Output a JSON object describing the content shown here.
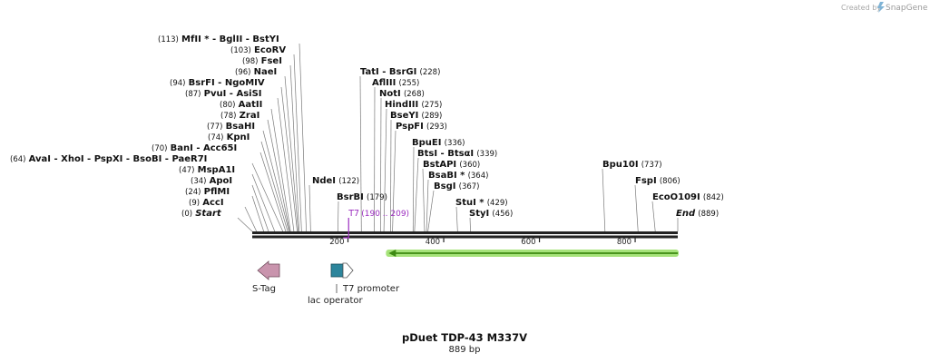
{
  "branding": {
    "created_by": "Created by",
    "app": "SnapGene",
    "logo_icon": "snapgene-logo-icon"
  },
  "plasmid": {
    "name": "pDuet TDP-43 M337V",
    "length_label": "889 bp",
    "length": 889
  },
  "scale": {
    "ticks": [
      200,
      400,
      600,
      800
    ],
    "tick_labels": [
      "200",
      "400",
      "600",
      "800"
    ]
  },
  "sites": [
    {
      "name": "Start",
      "italic": true,
      "pos_label": "(0)",
      "pos": 0
    },
    {
      "name": "AccI",
      "pos_label": "(9)",
      "pos": 9
    },
    {
      "name": "PflMI",
      "pos_label": "(24)",
      "pos": 24
    },
    {
      "name": "ApoI",
      "pos_label": "(34)",
      "pos": 34
    },
    {
      "name": "MspA1I",
      "pos_label": "(47)",
      "pos": 47
    },
    {
      "pos_label": "(64)",
      "pos": 64,
      "names": [
        "AvaI",
        "XhoI",
        "PspXI",
        "BsoBI",
        "PaeR7I"
      ]
    },
    {
      "name": "KpnI",
      "pos_label": "(74)",
      "pos": 74
    },
    {
      "pos_label": "(70)",
      "pos": 70,
      "names": [
        "BanI",
        "Acc65I"
      ]
    },
    {
      "name": "BsaHI",
      "pos_label": "(77)",
      "pos": 77
    },
    {
      "name": "ZraI",
      "pos_label": "(78)",
      "pos": 78
    },
    {
      "name": "AatII",
      "pos_label": "(80)",
      "pos": 80
    },
    {
      "pos_label": "(87)",
      "pos": 87,
      "names": [
        "PvuI",
        "AsiSI"
      ]
    },
    {
      "pos_label": "(94)",
      "pos": 94,
      "names": [
        "BsrFI",
        "NgoMIV"
      ]
    },
    {
      "name": "NaeI",
      "pos_label": "(96)",
      "pos": 96
    },
    {
      "name": "FseI",
      "pos_label": "(98)",
      "pos": 98
    },
    {
      "name": "EcoRV",
      "pos_label": "(103)",
      "pos": 103
    },
    {
      "pos_label": "(113)",
      "pos": 113,
      "names": [
        "MfII *",
        "BglII",
        "BstYI"
      ]
    },
    {
      "name": "NdeI",
      "pos_label": "(122)",
      "pos": 122
    },
    {
      "name": "BsrBI",
      "pos_label": "(179)",
      "pos": 179
    },
    {
      "pos_label": "(228)",
      "pos": 228,
      "names": [
        "TatI",
        "BsrGI"
      ]
    },
    {
      "name": "AflIII",
      "pos_label": "(255)",
      "pos": 255
    },
    {
      "name": "NotI",
      "pos_label": "(268)",
      "pos": 268
    },
    {
      "name": "HindIII",
      "pos_label": "(275)",
      "pos": 275
    },
    {
      "name": "BseYI",
      "pos_label": "(289)",
      "pos": 289
    },
    {
      "name": "PspFI",
      "pos_label": "(293)",
      "pos": 293
    },
    {
      "name": "BpuEI",
      "pos_label": "(336)",
      "pos": 336
    },
    {
      "pos_label": "(339)",
      "pos": 339,
      "names": [
        "BtsI",
        "BtsαI"
      ]
    },
    {
      "name": "BstAPI",
      "pos_label": "(360)",
      "pos": 360
    },
    {
      "name": "BsaBI *",
      "pos_label": "(364)",
      "pos": 364
    },
    {
      "name": "BsgI",
      "pos_label": "(367)",
      "pos": 367
    },
    {
      "name": "StuI *",
      "pos_label": "(429)",
      "pos": 429
    },
    {
      "name": "StyI",
      "pos_label": "(456)",
      "pos": 456
    },
    {
      "name": "Bpu10I",
      "pos_label": "(737)",
      "pos": 737
    },
    {
      "name": "FspI",
      "pos_label": "(806)",
      "pos": 806
    },
    {
      "name": "EcoO109I",
      "pos_label": "(842)",
      "pos": 842
    },
    {
      "name": "End",
      "italic": true,
      "pos_label": "(889)",
      "pos": 889
    }
  ],
  "primer": {
    "name": "T7",
    "range_label": "(190 .. 209)",
    "start": 190,
    "end": 209,
    "color": "#9b2dbf"
  },
  "orf": {
    "start": 285,
    "end": 889,
    "direction": "reverse",
    "color": "#3d8a12",
    "glow": "#a6e37a"
  },
  "features": [
    {
      "name": "S-Tag",
      "icon": "arrow-left-icon",
      "color": "#c994ad"
    },
    {
      "name": "lac operator",
      "icon": "box-icon",
      "color": "#2c859c"
    },
    {
      "name": "T7 promoter",
      "icon": "arrow-right-icon",
      "color": "#ffffff"
    }
  ]
}
